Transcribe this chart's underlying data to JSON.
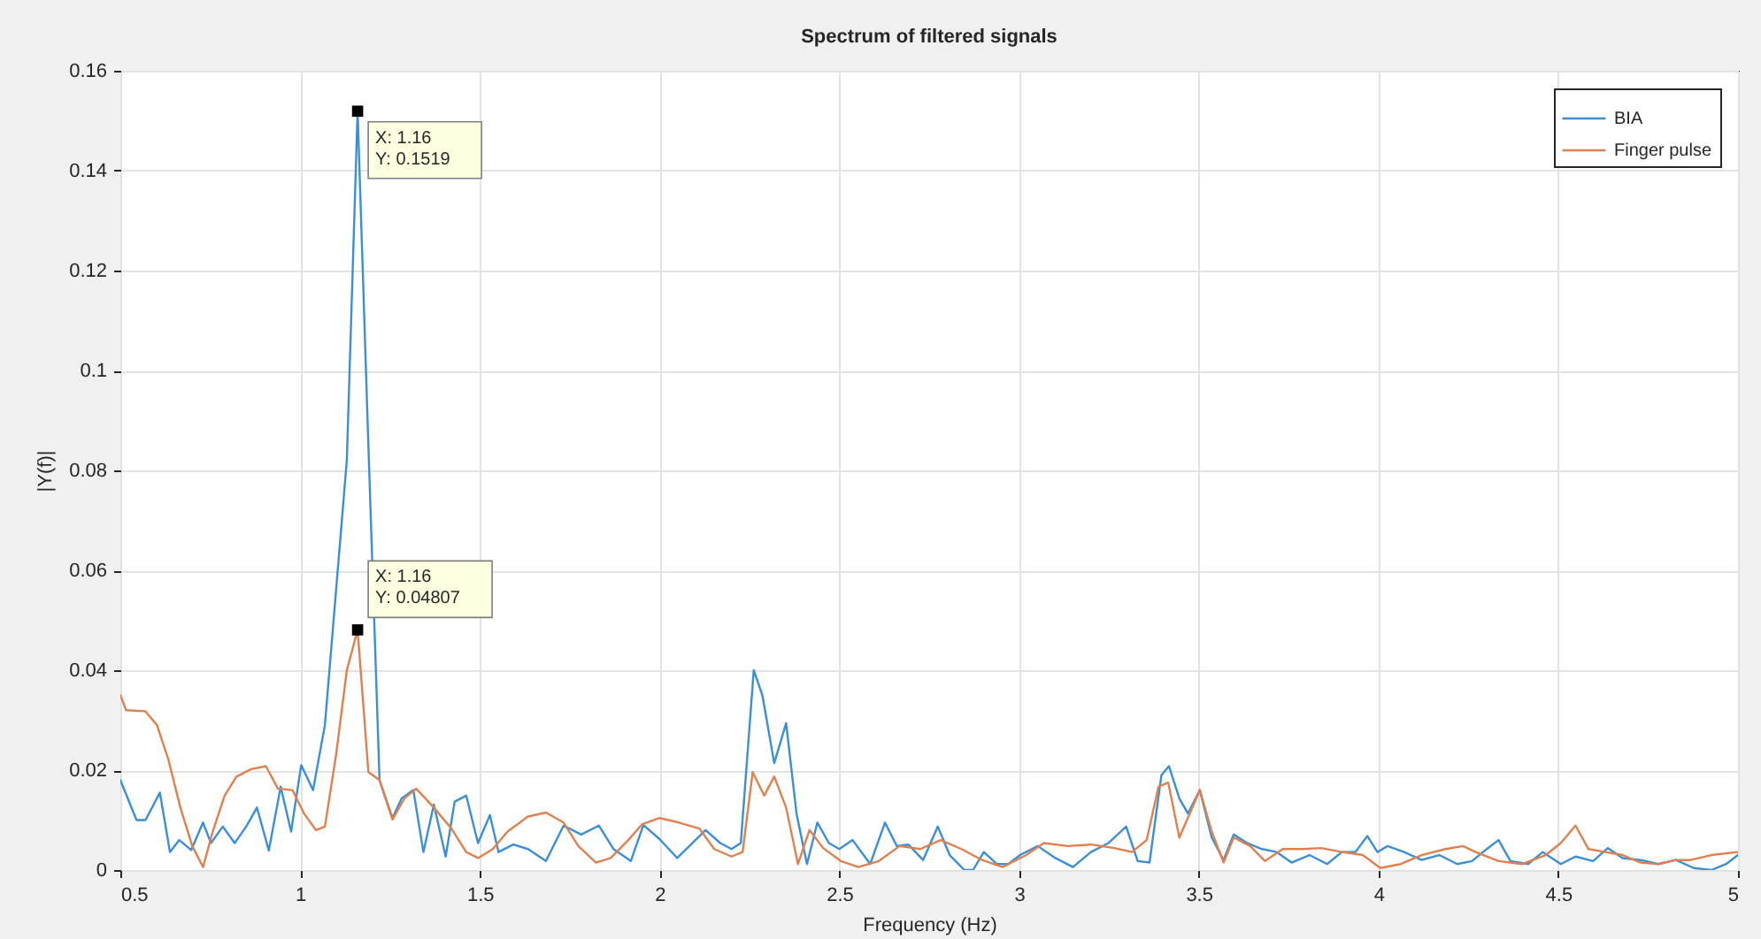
{
  "chart_data": {
    "type": "line",
    "title": "Spectrum of filtered signals",
    "xlabel": "Frequency (Hz)",
    "ylabel": "|Y(f)|",
    "xlim": [
      0.5,
      5
    ],
    "xticks": [
      0.5,
      1,
      1.5,
      2,
      2.5,
      3,
      3.5,
      4,
      4.5,
      5
    ],
    "ylim": [
      0,
      0.16
    ],
    "yticks": [
      0,
      0.02,
      0.04,
      0.06,
      0.08,
      0.1,
      0.12,
      0.14,
      0.16
    ],
    "grid": true,
    "legend": "top right",
    "line_style": "solid",
    "series": [
      {
        "name": "BIA",
        "color": "#3a8fd6",
        "x": [
          0.5,
          0.545,
          0.57,
          0.61,
          0.638,
          0.664,
          0.697,
          0.73,
          0.752,
          0.785,
          0.818,
          0.85,
          0.88,
          0.913,
          0.946,
          0.975,
          1.003,
          1.036,
          1.069,
          1.13,
          1.16,
          1.19,
          1.221,
          1.257,
          1.282,
          1.315,
          1.343,
          1.372,
          1.405,
          1.43,
          1.462,
          1.495,
          1.528,
          1.552,
          1.593,
          1.634,
          1.684,
          1.733,
          1.782,
          1.831,
          1.872,
          1.92,
          1.955,
          2.0,
          2.049,
          2.128,
          2.169,
          2.2,
          2.226,
          2.262,
          2.286,
          2.319,
          2.352,
          2.381,
          2.41,
          2.439,
          2.471,
          2.5,
          2.537,
          2.586,
          2.627,
          2.66,
          2.692,
          2.733,
          2.774,
          2.807,
          2.848,
          2.872,
          2.902,
          2.938,
          2.97,
          3.003,
          3.052,
          3.101,
          3.15,
          3.2,
          3.249,
          3.298,
          3.33,
          3.363,
          3.396,
          3.417,
          3.446,
          3.47,
          3.503,
          3.536,
          3.569,
          3.597,
          3.635,
          3.676,
          3.717,
          3.758,
          3.808,
          3.857,
          3.898,
          3.936,
          3.969,
          3.997,
          4.025,
          4.071,
          4.12,
          4.169,
          4.219,
          4.26,
          4.301,
          4.334,
          4.367,
          4.416,
          4.457,
          4.507,
          4.548,
          4.597,
          4.638,
          4.679,
          4.729,
          4.778,
          4.827,
          4.877,
          4.926,
          4.967,
          5.0
        ],
        "values": [
          0.018,
          0.01,
          0.01,
          0.0155,
          0.0036,
          0.006,
          0.004,
          0.0095,
          0.0054,
          0.0087,
          0.0054,
          0.0087,
          0.0125,
          0.0039,
          0.0167,
          0.0077,
          0.021,
          0.016,
          0.029,
          0.082,
          0.1519,
          0.085,
          0.018,
          0.0104,
          0.0143,
          0.016,
          0.0036,
          0.0131,
          0.0027,
          0.0137,
          0.0149,
          0.0054,
          0.011,
          0.0036,
          0.0051,
          0.0042,
          0.0018,
          0.0089,
          0.0071,
          0.0089,
          0.0042,
          0.0018,
          0.009,
          0.0062,
          0.0024,
          0.008,
          0.0054,
          0.0042,
          0.0054,
          0.04,
          0.035,
          0.0214,
          0.0294,
          0.0113,
          0.0012,
          0.0095,
          0.0054,
          0.0042,
          0.006,
          0.0012,
          0.0095,
          0.0048,
          0.0051,
          0.002,
          0.0087,
          0.003,
          0,
          0,
          0.0036,
          0.0012,
          0.0012,
          0.003,
          0.0048,
          0.0024,
          0.0006,
          0.0036,
          0.0054,
          0.0087,
          0.0018,
          0.0015,
          0.019,
          0.0208,
          0.0143,
          0.0113,
          0.016,
          0.0065,
          0.002,
          0.0071,
          0.0054,
          0.0042,
          0.0036,
          0.0015,
          0.003,
          0.0012,
          0.0036,
          0.0036,
          0.0068,
          0.0036,
          0.0048,
          0.0036,
          0.002,
          0.003,
          0.0012,
          0.0018,
          0.0042,
          0.006,
          0.0018,
          0.0012,
          0.0036,
          0.0012,
          0.0027,
          0.0018,
          0.0044,
          0.0024,
          0.002,
          0.0012,
          0.002,
          0.0004,
          0,
          0.0012,
          0.003
        ]
      },
      {
        "name": "Finger pulse",
        "color": "#e0804f",
        "x": [
          0.5,
          0.516,
          0.569,
          0.602,
          0.634,
          0.667,
          0.7,
          0.73,
          0.757,
          0.79,
          0.823,
          0.864,
          0.905,
          0.938,
          0.979,
          1.011,
          1.044,
          1.069,
          1.1,
          1.13,
          1.16,
          1.19,
          1.221,
          1.257,
          1.29,
          1.323,
          1.372,
          1.421,
          1.462,
          1.495,
          1.536,
          1.577,
          1.634,
          1.684,
          1.733,
          1.774,
          1.823,
          1.864,
          1.913,
          1.952,
          2.0,
          2.054,
          2.111,
          2.152,
          2.2,
          2.231,
          2.259,
          2.291,
          2.319,
          2.352,
          2.385,
          2.417,
          2.455,
          2.504,
          2.553,
          2.61,
          2.668,
          2.725,
          2.782,
          2.84,
          2.897,
          2.954,
          3.02,
          3.069,
          3.135,
          3.2,
          3.265,
          3.314,
          3.355,
          3.388,
          3.415,
          3.446,
          3.503,
          3.536,
          3.569,
          3.597,
          3.643,
          3.684,
          3.734,
          3.791,
          3.84,
          3.898,
          3.956,
          4.005,
          4.062,
          4.12,
          4.186,
          4.235,
          4.27,
          4.334,
          4.4,
          4.465,
          4.507,
          4.548,
          4.584,
          4.63,
          4.679,
          4.729,
          4.778,
          4.827,
          4.868,
          4.926,
          5.0
        ],
        "values": [
          0.035,
          0.032,
          0.0318,
          0.029,
          0.022,
          0.0125,
          0.0048,
          0.0006,
          0.0077,
          0.0149,
          0.0187,
          0.0202,
          0.0208,
          0.0163,
          0.016,
          0.0113,
          0.008,
          0.0087,
          0.023,
          0.04,
          0.04807,
          0.0196,
          0.018,
          0.0101,
          0.0143,
          0.0163,
          0.0125,
          0.0083,
          0.0036,
          0.0024,
          0.0042,
          0.0077,
          0.0107,
          0.0115,
          0.0095,
          0.0048,
          0.0015,
          0.0024,
          0.006,
          0.0092,
          0.0104,
          0.0095,
          0.0083,
          0.0042,
          0.0027,
          0.0036,
          0.0196,
          0.0149,
          0.0187,
          0.0125,
          0.0012,
          0.008,
          0.0044,
          0.0018,
          0.0006,
          0.0018,
          0.0048,
          0.0042,
          0.006,
          0.0042,
          0.002,
          0.0006,
          0.003,
          0.0054,
          0.0048,
          0.0051,
          0.0044,
          0.0036,
          0.006,
          0.0167,
          0.0175,
          0.0065,
          0.016,
          0.0077,
          0.0015,
          0.0065,
          0.0048,
          0.0018,
          0.0042,
          0.0042,
          0.0044,
          0.0036,
          0.003,
          0.0004,
          0.0012,
          0.003,
          0.0042,
          0.0048,
          0.0036,
          0.0018,
          0.0012,
          0.003,
          0.0054,
          0.0089,
          0.0042,
          0.0036,
          0.003,
          0.0015,
          0.0012,
          0.002,
          0.002,
          0.003,
          0.0036
        ]
      }
    ],
    "annotations": [
      {
        "text": "X: 1.16\nY: 0.1519",
        "x": 1.16,
        "y": 0.1519
      },
      {
        "text": "X: 1.16\nY: 0.04807",
        "x": 1.16,
        "y": 0.04807
      }
    ]
  }
}
